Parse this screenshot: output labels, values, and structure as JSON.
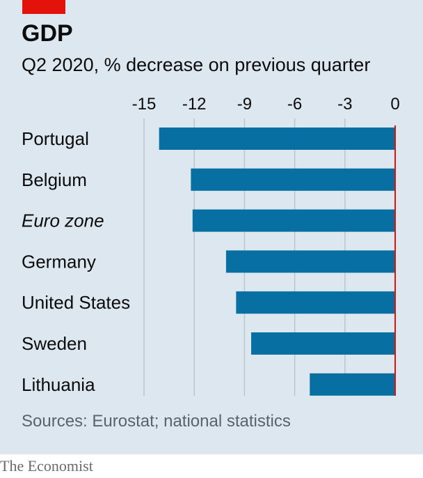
{
  "chart_data": {
    "type": "bar",
    "orientation": "horizontal",
    "title": "GDP",
    "subtitle": "Q2 2020, % decrease on previous quarter",
    "categories": [
      "Portugal",
      "Belgium",
      "Euro zone",
      "Germany",
      "United States",
      "Sweden",
      "Lithuania"
    ],
    "italic_categories": [
      "Euro zone"
    ],
    "values": [
      -14.1,
      -12.2,
      -12.1,
      -10.1,
      -9.5,
      -8.6,
      -5.1
    ],
    "xlim": [
      -15,
      0
    ],
    "xticks": [
      -15,
      -12,
      -9,
      -6,
      -3,
      0
    ],
    "tick_labels": [
      "-15",
      "-12",
      "-9",
      "-6",
      "-3",
      "0"
    ],
    "grid": true,
    "source": "Sources: Eurostat; national statistics",
    "colors": {
      "bar": "#076fa1",
      "zero_line": "#e3120b",
      "background": "#dde7ef",
      "grid": "#b7c6d1",
      "tag": "#e3120b"
    }
  },
  "brand": {
    "logo_text": "The Economist"
  }
}
